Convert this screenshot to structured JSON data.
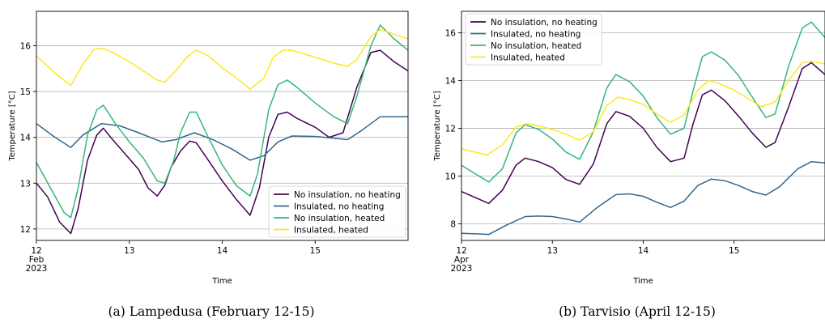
{
  "colors": {
    "no_ins_no_heat": "#440154",
    "ins_no_heat": "#31688e",
    "no_ins_heated": "#35b779",
    "ins_heated": "#fde725",
    "grid": "#b0b0b0"
  },
  "chart_data": [
    {
      "type": "line",
      "caption": "(a) Lampedusa (February 12-15)",
      "xlabel": "Time",
      "ylabel": "Temperature [°C]",
      "x_tick_labels": [
        "12",
        "13",
        "14",
        "15"
      ],
      "x_tick_values": [
        12,
        13,
        14,
        15
      ],
      "x_start_label": [
        "12",
        "Feb",
        "2023"
      ],
      "xlim": [
        12.0,
        16.0
      ],
      "ylim": [
        11.75,
        16.75
      ],
      "y_ticks": [
        12,
        13,
        14,
        15,
        16
      ],
      "grid": "y-major",
      "legend_position": "lower right",
      "series": [
        {
          "name": "No insulation, no heating",
          "color_key": "no_ins_no_heat",
          "x": [
            12.0,
            12.12,
            12.25,
            12.37,
            12.45,
            12.55,
            12.65,
            12.72,
            12.82,
            12.95,
            13.1,
            13.2,
            13.3,
            13.38,
            13.45,
            13.55,
            13.65,
            13.72,
            13.85,
            14.0,
            14.15,
            14.3,
            14.4,
            14.5,
            14.6,
            14.7,
            14.8,
            15.0,
            15.15,
            15.3,
            15.45,
            15.6,
            15.7,
            15.85,
            16.0
          ],
          "y": [
            13.0,
            12.7,
            12.15,
            11.9,
            12.45,
            13.5,
            14.05,
            14.2,
            13.95,
            13.65,
            13.3,
            12.9,
            12.72,
            12.95,
            13.35,
            13.7,
            13.92,
            13.88,
            13.5,
            13.05,
            12.65,
            12.3,
            12.9,
            14.0,
            14.5,
            14.55,
            14.42,
            14.22,
            14.0,
            14.1,
            15.1,
            15.85,
            15.9,
            15.65,
            15.45
          ]
        },
        {
          "name": "Insulated, no heating",
          "color_key": "ins_no_heat",
          "x": [
            12.0,
            12.2,
            12.37,
            12.5,
            12.7,
            12.9,
            13.1,
            13.25,
            13.35,
            13.5,
            13.7,
            13.9,
            14.1,
            14.3,
            14.45,
            14.6,
            14.75,
            15.0,
            15.2,
            15.35,
            15.5,
            15.7,
            16.0
          ],
          "y": [
            14.3,
            14.0,
            13.78,
            14.05,
            14.3,
            14.25,
            14.1,
            13.98,
            13.9,
            13.95,
            14.1,
            13.95,
            13.75,
            13.5,
            13.6,
            13.9,
            14.03,
            14.02,
            13.98,
            13.95,
            14.15,
            14.45,
            14.45
          ]
        },
        {
          "name": "No insulation, heated",
          "color_key": "no_ins_heated",
          "x": [
            12.0,
            12.15,
            12.3,
            12.37,
            12.45,
            12.55,
            12.65,
            12.72,
            12.85,
            13.0,
            13.15,
            13.3,
            13.38,
            13.48,
            13.55,
            13.65,
            13.72,
            13.85,
            14.0,
            14.15,
            14.3,
            14.38,
            14.5,
            14.6,
            14.7,
            14.8,
            15.0,
            15.2,
            15.35,
            15.45,
            15.6,
            15.7,
            15.85,
            16.0
          ],
          "y": [
            13.45,
            12.9,
            12.35,
            12.25,
            12.9,
            14.05,
            14.6,
            14.7,
            14.3,
            13.9,
            13.55,
            13.05,
            13.0,
            13.5,
            14.1,
            14.55,
            14.55,
            14.0,
            13.4,
            12.95,
            12.72,
            13.2,
            14.6,
            15.15,
            15.25,
            15.1,
            14.75,
            14.45,
            14.3,
            14.9,
            16.0,
            16.45,
            16.15,
            15.9
          ]
        },
        {
          "name": "Insulated, heated",
          "color_key": "ins_heated",
          "x": [
            12.0,
            12.2,
            12.37,
            12.5,
            12.62,
            12.72,
            12.85,
            13.0,
            13.15,
            13.3,
            13.38,
            13.5,
            13.62,
            13.72,
            13.85,
            14.0,
            14.15,
            14.3,
            14.45,
            14.55,
            14.65,
            14.75,
            15.0,
            15.2,
            15.35,
            15.45,
            15.6,
            15.7,
            15.85,
            16.0
          ],
          "y": [
            15.78,
            15.4,
            15.13,
            15.6,
            15.92,
            15.94,
            15.82,
            15.65,
            15.45,
            15.25,
            15.2,
            15.45,
            15.75,
            15.9,
            15.78,
            15.52,
            15.3,
            15.05,
            15.3,
            15.75,
            15.9,
            15.9,
            15.75,
            15.62,
            15.55,
            15.7,
            16.2,
            16.35,
            16.25,
            16.15
          ]
        }
      ]
    },
    {
      "type": "line",
      "caption": "(b) Tarvisio (April 12-15)",
      "xlabel": "Time",
      "ylabel": "Temperature [°C]",
      "x_tick_labels": [
        "12",
        "13",
        "14",
        "15"
      ],
      "x_tick_values": [
        12,
        13,
        14,
        15
      ],
      "x_start_label": [
        "12",
        "Apr",
        "2023"
      ],
      "xlim": [
        12.0,
        16.0
      ],
      "ylim": [
        7.3,
        16.9
      ],
      "y_ticks": [
        8,
        10,
        12,
        14,
        16
      ],
      "grid": "y-major",
      "legend_position": "upper left",
      "series": [
        {
          "name": "No insulation, no heating",
          "color_key": "no_ins_no_heat",
          "x": [
            12.0,
            12.15,
            12.3,
            12.45,
            12.6,
            12.7,
            12.85,
            13.0,
            13.15,
            13.3,
            13.45,
            13.6,
            13.7,
            13.85,
            14.0,
            14.15,
            14.3,
            14.45,
            14.55,
            14.65,
            14.75,
            14.9,
            15.05,
            15.2,
            15.35,
            15.45,
            15.6,
            15.75,
            15.85,
            16.0
          ],
          "y": [
            9.35,
            9.1,
            8.85,
            9.4,
            10.45,
            10.75,
            10.6,
            10.35,
            9.85,
            9.65,
            10.5,
            12.2,
            12.7,
            12.5,
            12.0,
            11.2,
            10.6,
            10.75,
            12.2,
            13.4,
            13.6,
            13.15,
            12.5,
            11.8,
            11.2,
            11.4,
            12.9,
            14.5,
            14.75,
            14.25
          ]
        },
        {
          "name": "Insulated, no heating",
          "color_key": "ins_no_heat",
          "x": [
            12.0,
            12.2,
            12.3,
            12.5,
            12.7,
            12.85,
            13.0,
            13.15,
            13.3,
            13.5,
            13.7,
            13.85,
            14.0,
            14.15,
            14.3,
            14.45,
            14.6,
            14.75,
            14.9,
            15.05,
            15.2,
            15.35,
            15.5,
            15.7,
            15.85,
            16.0
          ],
          "y": [
            7.6,
            7.57,
            7.55,
            7.95,
            8.3,
            8.32,
            8.3,
            8.2,
            8.07,
            8.7,
            9.22,
            9.25,
            9.15,
            8.9,
            8.68,
            8.95,
            9.6,
            9.87,
            9.8,
            9.6,
            9.35,
            9.2,
            9.55,
            10.3,
            10.6,
            10.55
          ]
        },
        {
          "name": "No insulation, heated",
          "color_key": "no_ins_heated",
          "x": [
            12.0,
            12.15,
            12.3,
            12.45,
            12.6,
            12.7,
            12.85,
            13.0,
            13.15,
            13.3,
            13.45,
            13.6,
            13.7,
            13.85,
            14.0,
            14.15,
            14.3,
            14.45,
            14.55,
            14.65,
            14.75,
            14.9,
            15.05,
            15.2,
            15.35,
            15.45,
            15.6,
            15.75,
            15.85,
            16.0
          ],
          "y": [
            10.45,
            10.1,
            9.75,
            10.3,
            11.8,
            12.15,
            11.95,
            11.55,
            11.0,
            10.7,
            11.85,
            13.7,
            14.25,
            13.95,
            13.35,
            12.45,
            11.75,
            12.0,
            13.6,
            15.0,
            15.2,
            14.85,
            14.2,
            13.3,
            12.45,
            12.6,
            14.6,
            16.2,
            16.45,
            15.8
          ]
        },
        {
          "name": "Insulated, heated",
          "color_key": "ins_heated",
          "x": [
            12.0,
            12.15,
            12.28,
            12.45,
            12.6,
            12.72,
            12.85,
            13.0,
            13.15,
            13.3,
            13.45,
            13.6,
            13.72,
            13.85,
            14.0,
            14.15,
            14.3,
            14.45,
            14.6,
            14.72,
            14.85,
            15.0,
            15.15,
            15.3,
            15.45,
            15.6,
            15.75,
            15.85,
            16.0
          ],
          "y": [
            11.15,
            11.0,
            10.88,
            11.3,
            12.05,
            12.2,
            12.1,
            11.95,
            11.75,
            11.5,
            11.85,
            12.95,
            13.3,
            13.2,
            13.0,
            12.6,
            12.25,
            12.55,
            13.6,
            14.0,
            13.85,
            13.6,
            13.25,
            12.9,
            13.1,
            14.0,
            14.75,
            14.8,
            14.7
          ]
        }
      ]
    }
  ]
}
